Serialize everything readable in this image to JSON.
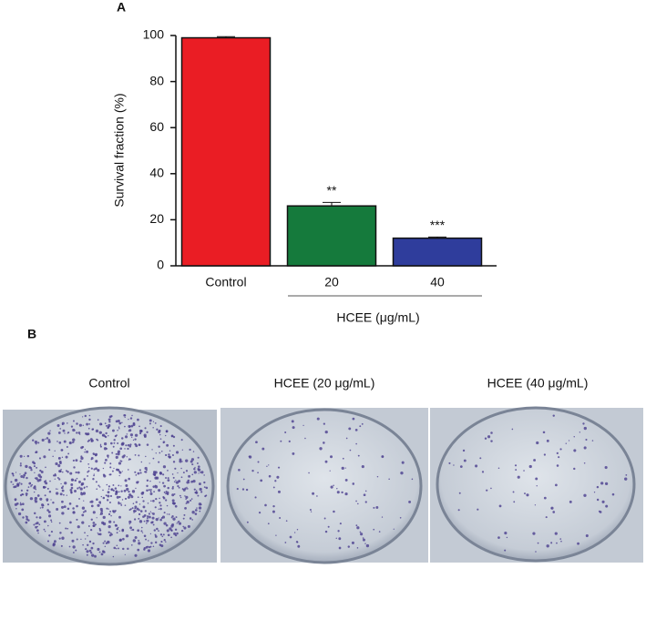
{
  "panel_a_label": "A",
  "chart_data": {
    "type": "bar",
    "y_label": "Survival fraction (%)",
    "x_label": "HCEE (μg/mL)",
    "categories": [
      "Control",
      "20",
      "40"
    ],
    "values": [
      99,
      26,
      12
    ],
    "error": [
      0.5,
      1.5,
      0.5
    ],
    "annotations": [
      null,
      "**",
      "***"
    ],
    "colors": [
      "#ea1d24",
      "#157a3c",
      "#2f3d9c"
    ],
    "ylim": [
      0,
      100
    ],
    "yticks": [
      0,
      20,
      40,
      60,
      80,
      100
    ],
    "grid": false
  },
  "panel_b": {
    "label": "B",
    "captions": [
      "Control",
      "HCEE (20 μg/mL)",
      "HCEE (40 μg/mL)"
    ]
  }
}
